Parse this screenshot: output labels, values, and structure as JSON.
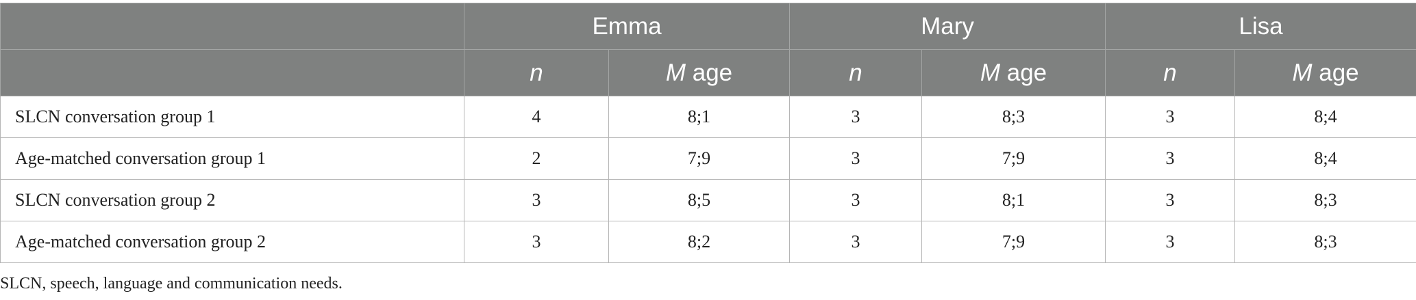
{
  "table": {
    "groups": [
      "Emma",
      "Mary",
      "Lisa"
    ],
    "sub_headers": {
      "n": "n",
      "m": "M",
      "age": " age"
    },
    "rows": [
      {
        "label": "SLCN conversation group 1",
        "values": [
          "4",
          "8;1",
          "3",
          "8;3",
          "3",
          "8;4"
        ]
      },
      {
        "label": "Age-matched conversation group 1",
        "values": [
          "2",
          "7;9",
          "3",
          "7;9",
          "3",
          "8;4"
        ]
      },
      {
        "label": "SLCN conversation group 2",
        "values": [
          "3",
          "8;5",
          "3",
          "8;1",
          "3",
          "8;3"
        ]
      },
      {
        "label": "Age-matched conversation group 2",
        "values": [
          "3",
          "8;2",
          "3",
          "7;9",
          "3",
          "8;3"
        ]
      }
    ]
  },
  "footnote": "SLCN, speech, language and communication needs."
}
